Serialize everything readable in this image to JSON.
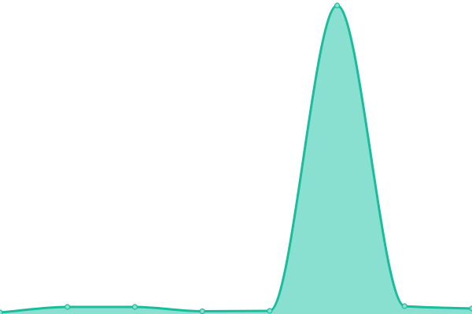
{
  "chart_data": {
    "type": "area",
    "x": [
      0,
      1,
      2,
      3,
      4,
      5,
      6,
      7
    ],
    "values": [
      2,
      9,
      9,
      3.5,
      4,
      393,
      10,
      7
    ],
    "ylim": [
      0,
      400
    ],
    "grid": false,
    "legend": "none",
    "curve": "monotone",
    "colors": {
      "line": "#1abc9c",
      "fill": "#8ae0d0",
      "point_fill": "#8ae0d0"
    }
  }
}
